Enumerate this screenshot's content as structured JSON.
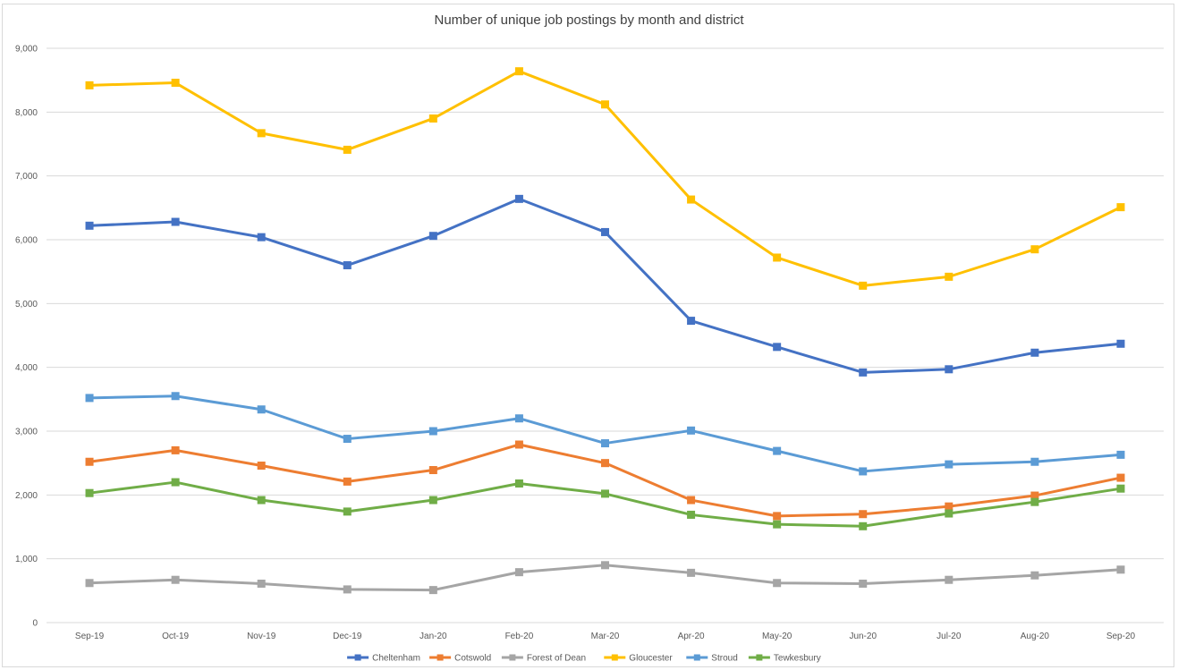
{
  "chart_data": {
    "type": "line",
    "title": "Number of unique job postings by month and district",
    "xlabel": "",
    "ylabel": "",
    "categories": [
      "Sep-19",
      "Oct-19",
      "Nov-19",
      "Dec-19",
      "Jan-20",
      "Feb-20",
      "Mar-20",
      "Apr-20",
      "May-20",
      "Jun-20",
      "Jul-20",
      "Aug-20",
      "Sep-20"
    ],
    "ylim": [
      0,
      9000
    ],
    "yticks": [
      0,
      1000,
      2000,
      3000,
      4000,
      5000,
      6000,
      7000,
      8000,
      9000
    ],
    "ytick_labels": [
      "0",
      "1,000",
      "2,000",
      "3,000",
      "4,000",
      "5,000",
      "6,000",
      "7,000",
      "8,000",
      "9,000"
    ],
    "grid": true,
    "legend_position": "bottom",
    "marker": "square",
    "series": [
      {
        "name": "Cheltenham",
        "color": "#4472c4",
        "values": [
          6220,
          6280,
          6040,
          5600,
          6060,
          6640,
          6120,
          4730,
          4320,
          3920,
          3970,
          4230,
          4370
        ]
      },
      {
        "name": "Cotswold",
        "color": "#ed7d31",
        "values": [
          2520,
          2700,
          2460,
          2210,
          2390,
          2790,
          2500,
          1920,
          1670,
          1700,
          1820,
          1990,
          2270
        ]
      },
      {
        "name": "Forest of Dean",
        "color": "#a5a5a5",
        "values": [
          620,
          670,
          610,
          520,
          510,
          790,
          900,
          780,
          620,
          610,
          670,
          740,
          830
        ]
      },
      {
        "name": "Gloucester",
        "color": "#ffc000",
        "values": [
          8420,
          8460,
          7670,
          7410,
          7900,
          8640,
          8120,
          6630,
          5720,
          5280,
          5420,
          5850,
          6510
        ]
      },
      {
        "name": "Stroud",
        "color": "#5b9bd5",
        "values": [
          3520,
          3550,
          3340,
          2880,
          3000,
          3200,
          2810,
          3010,
          2690,
          2370,
          2480,
          2520,
          2630
        ]
      },
      {
        "name": "Tewkesbury",
        "color": "#70ad47",
        "values": [
          2030,
          2200,
          1920,
          1740,
          1920,
          2180,
          2020,
          1690,
          1540,
          1510,
          1710,
          1890,
          2100
        ]
      }
    ]
  },
  "colors": {
    "grid": "#d9d9d9",
    "axis_text": "#595959",
    "title_text": "#404040"
  }
}
